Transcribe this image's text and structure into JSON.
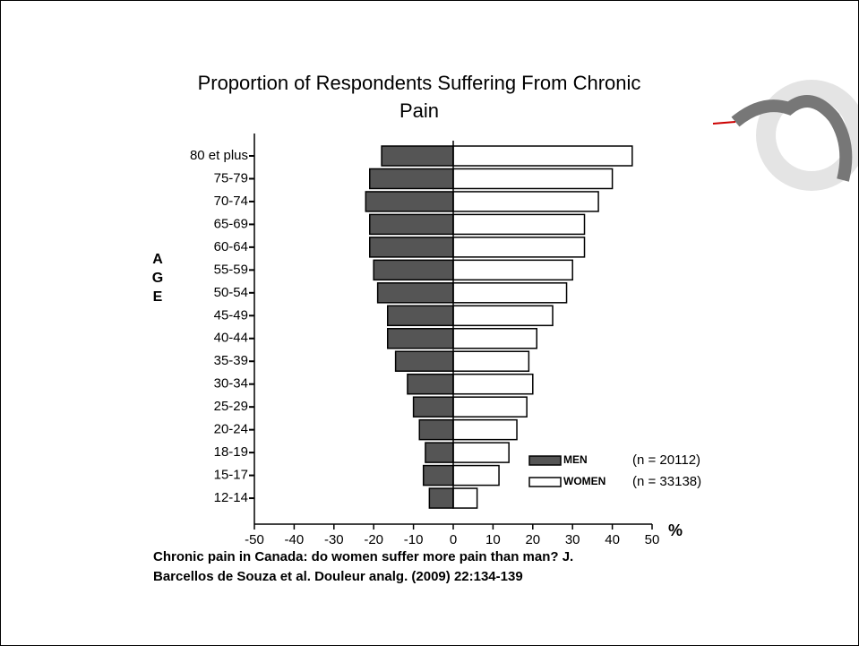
{
  "chart_data": {
    "type": "bar",
    "title": "Proportion of Respondents Suffering From Chronic Pain",
    "y_label": "AGE",
    "x_label": "%",
    "source": [
      "Chronic pain in Canada: do women suffer more pain than man?  J.",
      "Barcellos de Souza et al. Douleur analg. (2009) 22:134-139"
    ],
    "categories": [
      "80 et plus",
      "75-79",
      "70-74",
      "65-69",
      "60-64",
      "55-59",
      "50-54",
      "45-49",
      "40-44",
      "35-39",
      "30-34",
      "25-29",
      "20-24",
      "18-19",
      "15-17",
      "12-14"
    ],
    "series": [
      {
        "name": "MEN",
        "note": "(n = 20112)",
        "color": "#555555",
        "values": [
          -18,
          -21,
          -22,
          -21,
          -21,
          -20,
          -19,
          -16.5,
          -16.5,
          -14.5,
          -11.5,
          -10,
          -8.5,
          -7,
          -7.5,
          -6
        ]
      },
      {
        "name": "WOMEN",
        "note": "(n = 33138)",
        "color": "#ffffff",
        "values": [
          45,
          40,
          36.5,
          33,
          33,
          30,
          28.5,
          25,
          21,
          19,
          20,
          18.5,
          16,
          14,
          11.5,
          6
        ]
      }
    ],
    "xlim": [
      -50,
      50
    ],
    "xticks": [
      -50,
      -40,
      -30,
      -20,
      -10,
      0,
      10,
      20,
      30,
      40,
      50
    ]
  }
}
